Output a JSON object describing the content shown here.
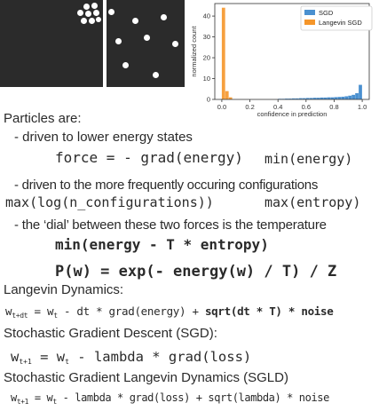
{
  "chart_data": {
    "type": "bar",
    "title": "",
    "xlabel": "confidence in prediction",
    "ylabel": "normalized count",
    "xlim": [
      -0.05,
      1.05
    ],
    "ylim": [
      0,
      46
    ],
    "xticks": [
      "0.0",
      "0.2",
      "0.4",
      "0.6",
      "0.8",
      "1.0"
    ],
    "yticks": [
      "0",
      "10",
      "20",
      "30",
      "40"
    ],
    "legend_position": "top-right",
    "bin_width": 0.025,
    "series": [
      {
        "name": "SGD",
        "color": "#4a90d0",
        "x": [
          0.4,
          0.425,
          0.45,
          0.475,
          0.5,
          0.525,
          0.55,
          0.575,
          0.6,
          0.625,
          0.65,
          0.675,
          0.7,
          0.725,
          0.75,
          0.775,
          0.8,
          0.825,
          0.85,
          0.875,
          0.9,
          0.925,
          0.95,
          0.975
        ],
        "values": [
          0.3,
          0.3,
          0.4,
          0.4,
          0.5,
          0.5,
          0.6,
          0.6,
          0.7,
          0.7,
          0.8,
          0.8,
          0.9,
          0.9,
          1.0,
          1.0,
          1.1,
          1.2,
          1.3,
          1.5,
          1.8,
          2.2,
          3.0,
          7.0
        ]
      },
      {
        "name": "Langevin SGD",
        "color": "#f5962a",
        "x": [
          0.0,
          0.025,
          0.05
        ],
        "values": [
          44,
          4,
          1
        ]
      }
    ]
  },
  "slide": {
    "particles_intro": "Particles are:",
    "bullet1": "-   driven to lower energy states",
    "force_eq": "force = - grad(energy)",
    "min_energy": "min(energy)",
    "bullet2": "-   driven to the more frequently occuring configurations",
    "max_log": "max(log(n_configurations))",
    "max_entropy": "max(entropy)",
    "bullet3": "-   the ‘dial’ between these two forces is the temperature",
    "free_energy": "min(energy - T * entropy)",
    "boltzmann": "P(w) = exp(- energy(w) / T) / Z",
    "langevin_title": "Langevin Dynamics:",
    "langevin_eq": {
      "lhs": "w",
      "lhs_sub": "t+dt",
      "eq": " = w",
      "eq_sub": "t",
      "rest": " - dt * grad(energy) + ",
      "sqrt_part": "sqrt(dt * T) * noise"
    },
    "sgd_title": "Stochastic Gradient Descent (SGD):",
    "sgd_eq": {
      "lhs": "w",
      "lhs_sub": "t+1",
      "eq": " = w",
      "eq_sub": "t",
      "rest": " - lambda * grad(loss)"
    },
    "sgld_title": "Stochastic Gradient Langevin Dynamics (SGLD)",
    "sgld_eq": {
      "lhs": "w",
      "lhs_sub": "t+1",
      "eq": " = w",
      "eq_sub": "t",
      "rest": " - lambda * grad(loss) + sqrt(lambda) * noise"
    }
  }
}
